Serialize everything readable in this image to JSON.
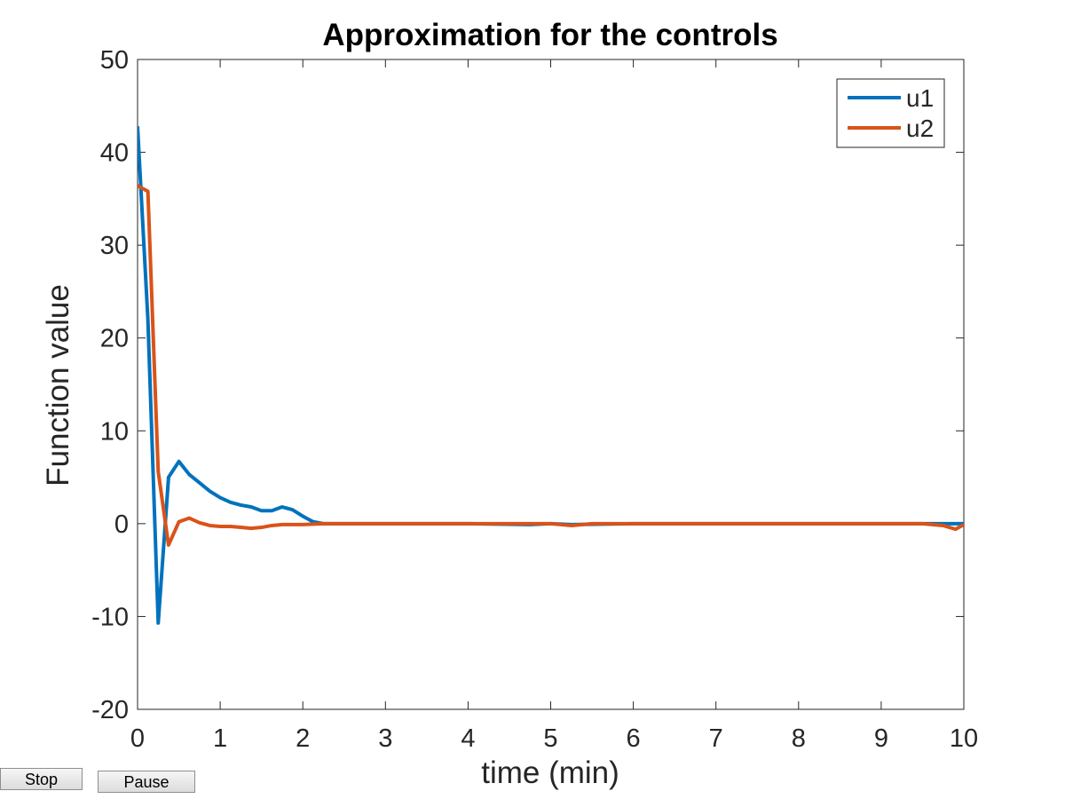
{
  "chart_data": {
    "type": "line",
    "title": "Approximation for the controls",
    "xlabel": "time (min)",
    "ylabel": "Function value",
    "xlim": [
      0,
      10
    ],
    "ylim": [
      -20,
      50
    ],
    "xticks": [
      0,
      1,
      2,
      3,
      4,
      5,
      6,
      7,
      8,
      9,
      10
    ],
    "yticks": [
      -20,
      -10,
      0,
      10,
      20,
      30,
      40,
      50
    ],
    "grid": false,
    "legend_position": "top-right",
    "series": [
      {
        "name": "u1",
        "color": "#0072BD",
        "x": [
          0,
          0.125,
          0.25,
          0.375,
          0.5,
          0.625,
          0.75,
          0.875,
          1.0,
          1.125,
          1.25,
          1.375,
          1.5,
          1.625,
          1.75,
          1.875,
          2.0,
          2.125,
          2.25,
          2.5,
          3,
          4,
          4.75,
          5,
          5.25,
          6,
          7,
          8,
          9,
          9.75,
          9.9,
          10
        ],
        "y": [
          42.8,
          22.0,
          -10.7,
          5.0,
          6.7,
          5.3,
          4.4,
          3.5,
          2.8,
          2.3,
          2.0,
          1.8,
          1.4,
          1.4,
          1.8,
          1.5,
          0.8,
          0.2,
          0.0,
          0.0,
          0.0,
          0.0,
          -0.1,
          0.0,
          -0.1,
          0.0,
          0.0,
          0.0,
          0.0,
          0.0,
          0.0,
          0.0
        ]
      },
      {
        "name": "u2",
        "color": "#D95319",
        "x": [
          0,
          0.125,
          0.25,
          0.375,
          0.5,
          0.625,
          0.75,
          0.875,
          1.0,
          1.125,
          1.25,
          1.375,
          1.5,
          1.625,
          1.75,
          2.0,
          2.25,
          2.5,
          3,
          4,
          5,
          5.25,
          5.5,
          6,
          7,
          8,
          9,
          9.5,
          9.75,
          9.9,
          10
        ],
        "y": [
          36.4,
          35.8,
          5.6,
          -2.3,
          0.2,
          0.6,
          0.1,
          -0.2,
          -0.3,
          -0.3,
          -0.4,
          -0.5,
          -0.4,
          -0.2,
          -0.1,
          -0.1,
          0.0,
          0.0,
          0.0,
          0.0,
          0.0,
          -0.2,
          0.0,
          0.0,
          0.0,
          0.0,
          0.0,
          0.0,
          -0.2,
          -0.6,
          -0.1
        ]
      }
    ]
  },
  "controls": {
    "stop_label": "Stop",
    "pause_label": "Pause"
  }
}
